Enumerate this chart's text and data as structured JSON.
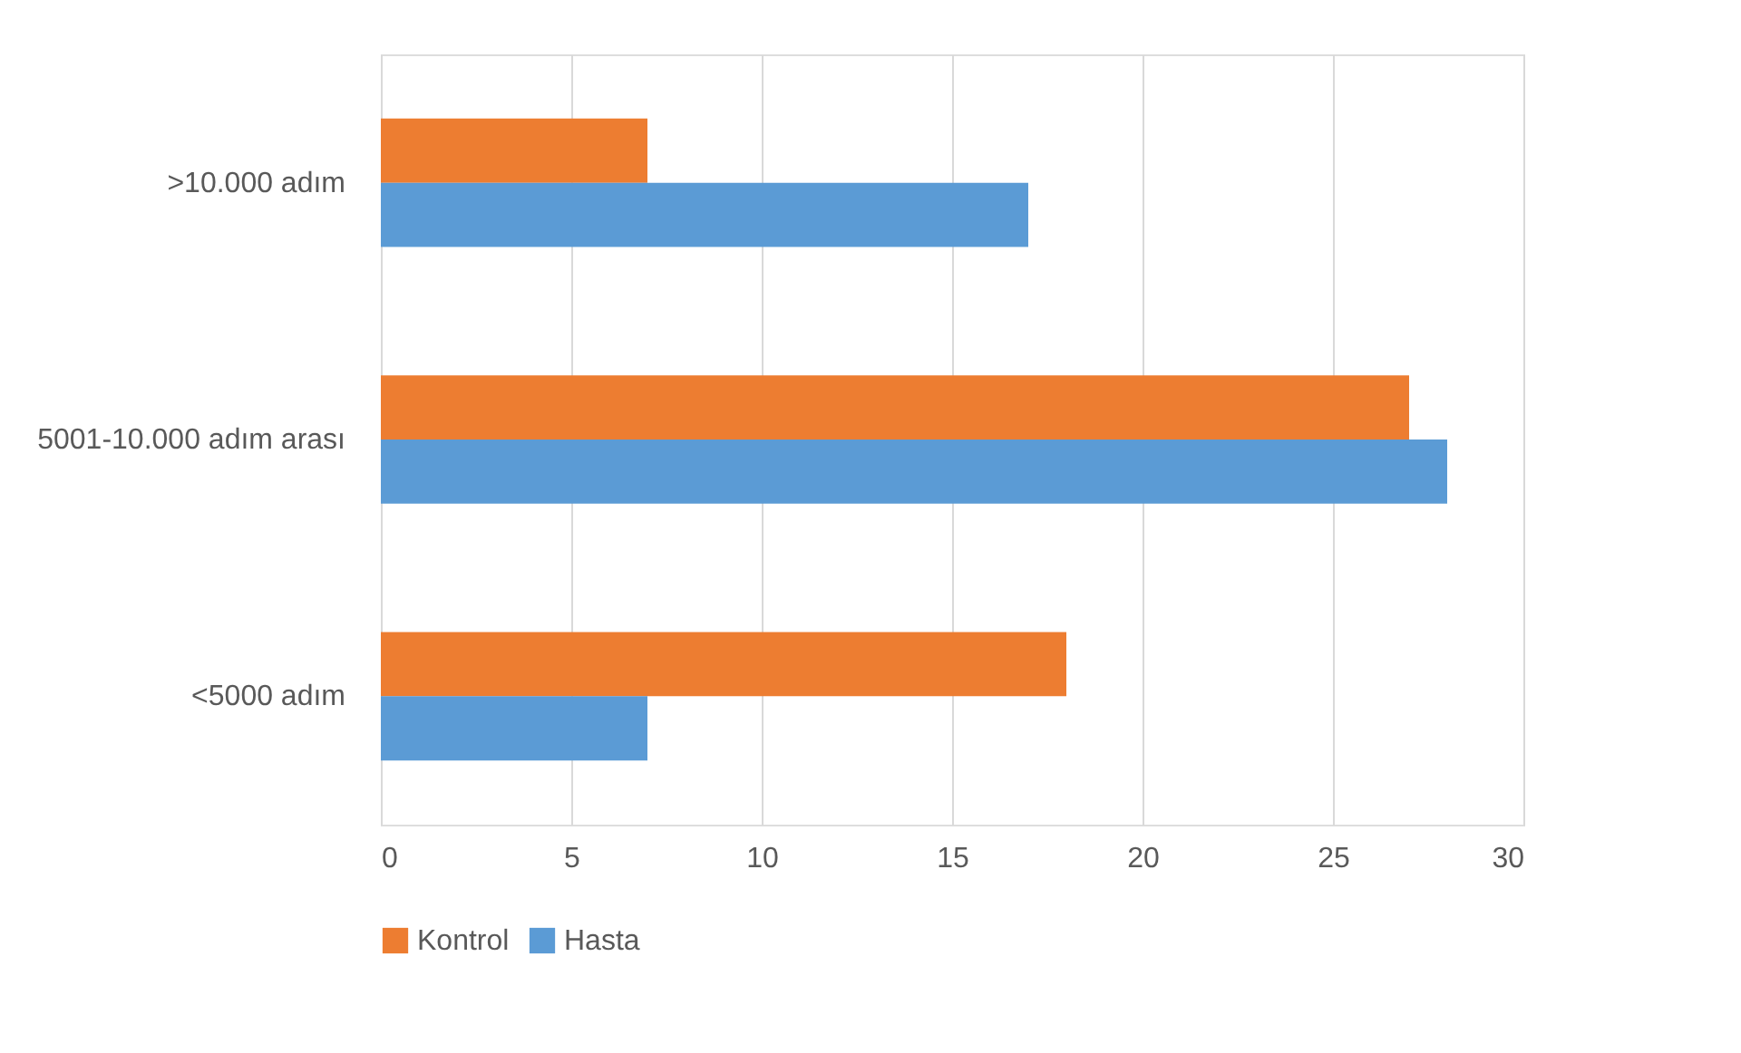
{
  "chart_data": {
    "type": "bar",
    "orientation": "horizontal",
    "categories": [
      ">10.000 adım",
      "5001-10.000 adım arası",
      "<5000 adım"
    ],
    "series": [
      {
        "name": "Kontrol",
        "color": "#ed7d31",
        "values": [
          7,
          27,
          18
        ]
      },
      {
        "name": "Hasta",
        "color": "#5b9bd5",
        "values": [
          17,
          28,
          7
        ]
      }
    ],
    "xlim": [
      0,
      30
    ],
    "xticks": [
      0,
      5,
      10,
      15,
      20,
      25,
      30
    ],
    "grid": "x",
    "legend": "bottom"
  }
}
